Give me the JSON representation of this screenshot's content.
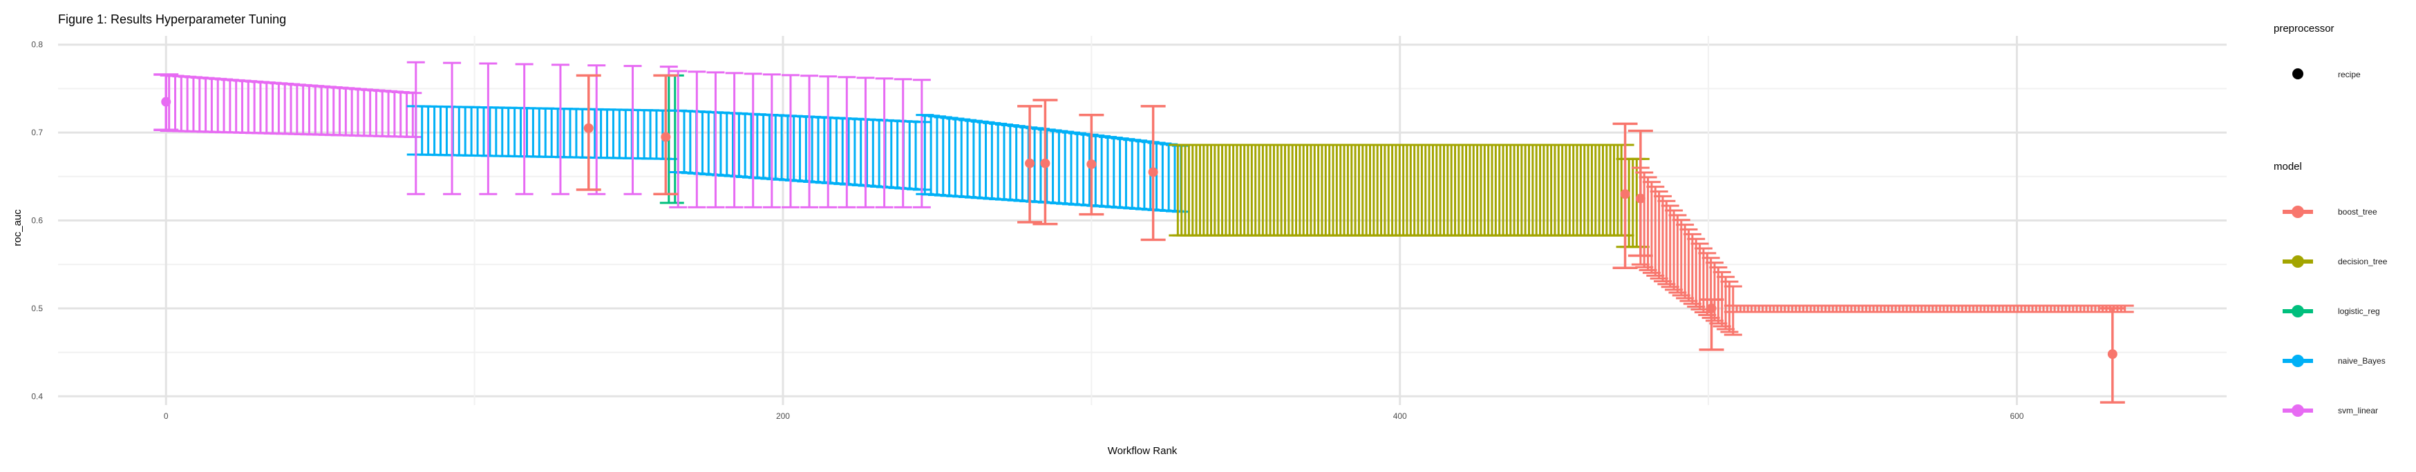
{
  "title": "Figure 1: Results Hyperparameter Tuning",
  "chart_data": {
    "type": "scatter",
    "title": "Figure 1: Results Hyperparameter Tuning",
    "xlabel": "Workflow Rank",
    "ylabel": "roc_auc",
    "xlim": [
      -35,
      668
    ],
    "ylim": [
      0.39,
      0.81
    ],
    "xticks": [
      0,
      200,
      400,
      600
    ],
    "yticks": [
      0.4,
      0.5,
      0.6,
      0.7,
      0.8
    ],
    "grid": true,
    "legend_position": "right",
    "legend": {
      "preprocessor": {
        "title": "preprocessor",
        "entries": [
          {
            "label": "recipe"
          }
        ]
      },
      "model": {
        "title": "model",
        "entries": [
          {
            "label": "boost_tree",
            "color": "#F8766D"
          },
          {
            "label": "decision_tree",
            "color": "#A3A500"
          },
          {
            "label": "logistic_reg",
            "color": "#00BF7D"
          },
          {
            "label": "naive_Bayes",
            "color": "#00B0F6"
          },
          {
            "label": "svm_linear",
            "color": "#E76BF3"
          }
        ]
      }
    },
    "segments": [
      {
        "model": "svm_linear",
        "x": [
          1,
          80
        ],
        "mean": [
          0.733,
          0.72
        ],
        "lo": [
          0.702,
          0.695
        ],
        "hi": [
          0.765,
          0.745
        ],
        "step": 2
      },
      {
        "model": "naive_Bayes",
        "x": [
          81,
          163
        ],
        "mean": [
          0.7,
          0.69
        ],
        "lo": [
          0.675,
          0.67
        ],
        "hi": [
          0.73,
          0.725
        ],
        "step": 2
      },
      {
        "model": "svm_linear",
        "x": [
          81,
          163
        ],
        "mean": [
          0.7,
          0.69
        ],
        "lo": [
          0.63,
          0.63
        ],
        "hi": [
          0.78,
          0.775
        ],
        "step": 12
      },
      {
        "model": "logistic_reg",
        "x": [
          163,
          165
        ],
        "mean": [
          0.695,
          0.695
        ],
        "lo": [
          0.62,
          0.62
        ],
        "hi": [
          0.765,
          0.765
        ],
        "step": 2
      },
      {
        "model": "naive_Bayes",
        "x": [
          166,
          245
        ],
        "mean": [
          0.69,
          0.67
        ],
        "lo": [
          0.655,
          0.635
        ],
        "hi": [
          0.725,
          0.712
        ],
        "step": 2
      },
      {
        "model": "svm_linear",
        "x": [
          166,
          245
        ],
        "mean": [
          0.69,
          0.69
        ],
        "lo": [
          0.615,
          0.615
        ],
        "hi": [
          0.77,
          0.76
        ],
        "step": 6
      },
      {
        "model": "naive_Bayes",
        "x": [
          246,
          329
        ],
        "mean": [
          0.665,
          0.645
        ],
        "lo": [
          0.63,
          0.61
        ],
        "hi": [
          0.72,
          0.685
        ],
        "step": 2
      },
      {
        "model": "decision_tree",
        "x": [
          328,
          473
        ],
        "mean": [
          0.632,
          0.632
        ],
        "lo": [
          0.583,
          0.583
        ],
        "hi": [
          0.686,
          0.686
        ],
        "step": 1.2
      },
      {
        "model": "decision_tree",
        "x": [
          473,
          478
        ],
        "mean": [
          0.62,
          0.62
        ],
        "lo": [
          0.57,
          0.57
        ],
        "hi": [
          0.67,
          0.67
        ],
        "step": 1.2
      },
      {
        "model": "boost_tree",
        "x": [
          478,
          508
        ],
        "mean": [
          0.6,
          0.505
        ],
        "lo": [
          0.55,
          0.47
        ],
        "hi": [
          0.66,
          0.525
        ],
        "step": 1.2
      },
      {
        "model": "boost_tree",
        "x": [
          508,
          635
        ],
        "mean": [
          0.5,
          0.5
        ],
        "lo": [
          0.496,
          0.496
        ],
        "hi": [
          0.503,
          0.503
        ],
        "step": 1.2
      }
    ],
    "points": [
      {
        "model": "svm_linear",
        "x": 0,
        "mean": 0.735,
        "lo": 0.703,
        "hi": 0.766
      },
      {
        "model": "boost_tree",
        "x": 137,
        "mean": 0.705,
        "lo": 0.635,
        "hi": 0.765
      },
      {
        "model": "boost_tree",
        "x": 162,
        "mean": 0.695,
        "lo": 0.63,
        "hi": 0.765
      },
      {
        "model": "boost_tree",
        "x": 280,
        "mean": 0.665,
        "lo": 0.598,
        "hi": 0.73
      },
      {
        "model": "boost_tree",
        "x": 285,
        "mean": 0.665,
        "lo": 0.596,
        "hi": 0.737
      },
      {
        "model": "boost_tree",
        "x": 300,
        "mean": 0.664,
        "lo": 0.607,
        "hi": 0.72
      },
      {
        "model": "boost_tree",
        "x": 320,
        "mean": 0.655,
        "lo": 0.578,
        "hi": 0.73
      },
      {
        "model": "boost_tree",
        "x": 473,
        "mean": 0.63,
        "lo": 0.546,
        "hi": 0.71
      },
      {
        "model": "boost_tree",
        "x": 478,
        "mean": 0.625,
        "lo": 0.56,
        "hi": 0.702
      },
      {
        "model": "boost_tree",
        "x": 501,
        "mean": 0.5,
        "lo": 0.453,
        "hi": 0.51
      },
      {
        "model": "boost_tree",
        "x": 631,
        "mean": 0.448,
        "lo": 0.393,
        "hi": 0.5
      }
    ]
  }
}
